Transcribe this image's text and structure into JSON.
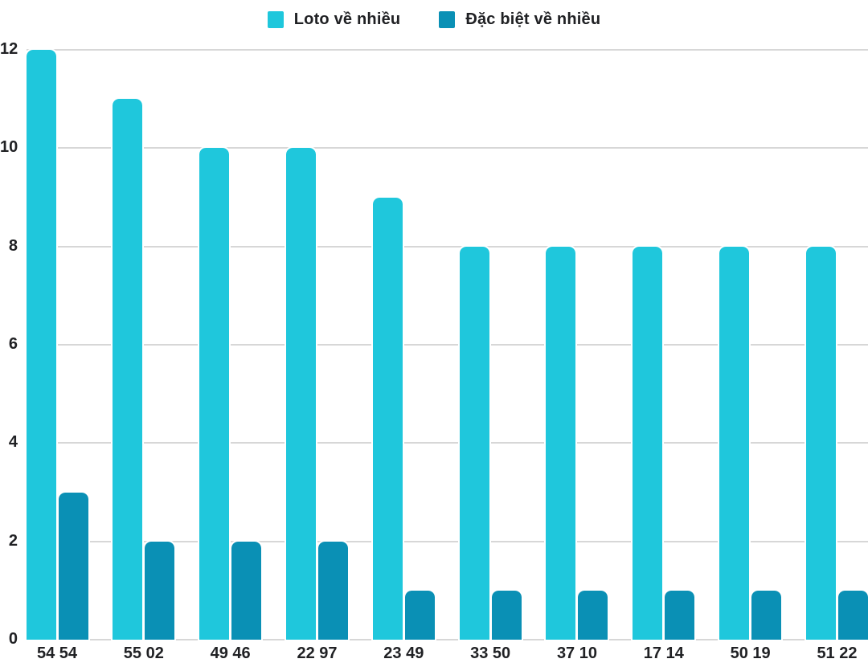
{
  "chart_data": {
    "type": "bar",
    "title": "",
    "xlabel": "",
    "ylabel": "",
    "categories": [
      "54 54",
      "55 02",
      "49 46",
      "22 97",
      "23 49",
      "33 50",
      "37 10",
      "17 14",
      "50 19",
      "51 22"
    ],
    "series": [
      {
        "name": "Loto về nhiều",
        "color": "#1FC7DC",
        "values": [
          12,
          11,
          10,
          10,
          9,
          8,
          8,
          8,
          8,
          8
        ]
      },
      {
        "name": "Đặc biệt về nhiều",
        "color": "#0A90B5",
        "values": [
          3,
          2,
          2,
          2,
          1,
          1,
          1,
          1,
          1,
          1
        ]
      }
    ],
    "ylim": [
      0,
      12
    ],
    "yticks": [
      0,
      2,
      4,
      6,
      8,
      10,
      12
    ],
    "grid": true,
    "legend_position": "top",
    "background_color": "#ffffff",
    "gridline_color": "#d7d7d7",
    "text_color": "#202124"
  }
}
